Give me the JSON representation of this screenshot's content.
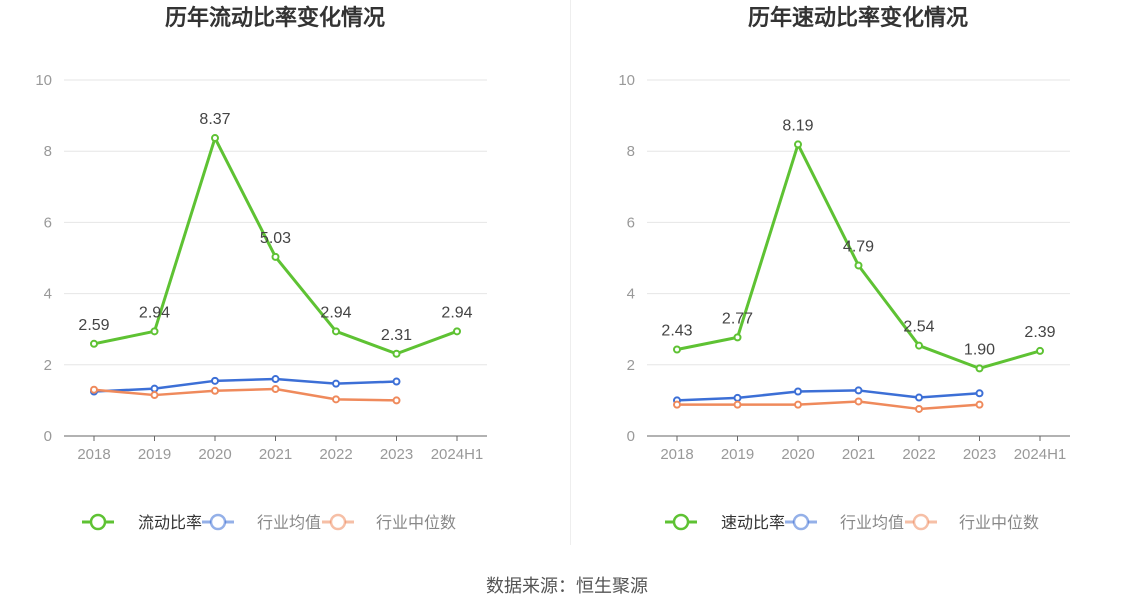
{
  "source": "数据来源：恒生聚源",
  "chart_data": [
    {
      "type": "line",
      "title": "历年流动比率变化情况",
      "categories": [
        "2018",
        "2019",
        "2020",
        "2021",
        "2022",
        "2023",
        "2024H1"
      ],
      "ylim": [
        0,
        10
      ],
      "yticks": [
        "0",
        "2",
        "4",
        "6",
        "8",
        "10"
      ],
      "grid": true,
      "legend_position": "bottom",
      "series": [
        {
          "name": "流动比率",
          "color": "#5ec233",
          "values": [
            2.59,
            2.94,
            8.37,
            5.03,
            2.94,
            2.31,
            2.94
          ],
          "labels": [
            "2.59",
            "2.94",
            "8.37",
            "5.03",
            "2.94",
            "2.31",
            "2.94"
          ]
        },
        {
          "name": "行业均值",
          "color": "#3c6fd6",
          "values": [
            1.25,
            1.33,
            1.55,
            1.6,
            1.47,
            1.53,
            null
          ]
        },
        {
          "name": "行业中位数",
          "color": "#ef8a5c",
          "values": [
            1.3,
            1.15,
            1.27,
            1.32,
            1.03,
            1.0,
            null
          ]
        }
      ]
    },
    {
      "type": "line",
      "title": "历年速动比率变化情况",
      "categories": [
        "2018",
        "2019",
        "2020",
        "2021",
        "2022",
        "2023",
        "2024H1"
      ],
      "ylim": [
        0,
        10
      ],
      "yticks": [
        "0",
        "2",
        "4",
        "6",
        "8",
        "10"
      ],
      "grid": true,
      "legend_position": "bottom",
      "series": [
        {
          "name": "速动比率",
          "color": "#5ec233",
          "values": [
            2.43,
            2.77,
            8.19,
            4.79,
            2.54,
            1.9,
            2.39
          ],
          "labels": [
            "2.43",
            "2.77",
            "8.19",
            "4.79",
            "2.54",
            "1.90",
            "2.39"
          ]
        },
        {
          "name": "行业均值",
          "color": "#3c6fd6",
          "values": [
            1.0,
            1.07,
            1.25,
            1.28,
            1.08,
            1.2,
            null
          ]
        },
        {
          "name": "行业中位数",
          "color": "#ef8a5c",
          "values": [
            0.88,
            0.88,
            0.88,
            0.97,
            0.76,
            0.88,
            null
          ]
        }
      ]
    }
  ]
}
